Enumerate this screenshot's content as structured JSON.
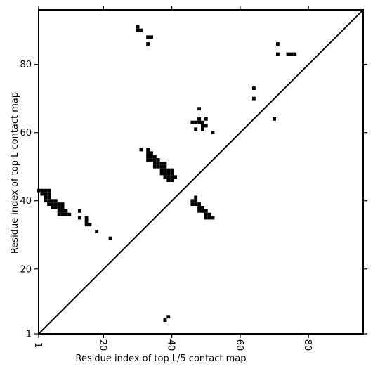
{
  "chart_data": {
    "type": "heatmap",
    "title": "",
    "xlabel": "Residue index of top L/5 contact map",
    "ylabel": "Residue index of top L contact map",
    "xlim": [
      1,
      96
    ],
    "ylim": [
      1,
      96
    ],
    "x_ticks": [
      "1",
      "20",
      "40",
      "60",
      "80"
    ],
    "y_ticks": [
      "1",
      "20",
      "40",
      "60",
      "80"
    ],
    "x_tick_values": [
      1,
      20,
      40,
      60,
      80
    ],
    "y_tick_values": [
      1,
      20,
      40,
      60,
      80
    ],
    "grid": false,
    "diagonal": true,
    "contact_color": "#000000",
    "contacts": [
      [
        1,
        43
      ],
      [
        2,
        43
      ],
      [
        3,
        43
      ],
      [
        4,
        43
      ],
      [
        2,
        42
      ],
      [
        3,
        42
      ],
      [
        4,
        42
      ],
      [
        3,
        41
      ],
      [
        4,
        41
      ],
      [
        3,
        40
      ],
      [
        4,
        40
      ],
      [
        5,
        40
      ],
      [
        6,
        40
      ],
      [
        4,
        39
      ],
      [
        5,
        39
      ],
      [
        6,
        39
      ],
      [
        7,
        39
      ],
      [
        8,
        39
      ],
      [
        5,
        38
      ],
      [
        6,
        38
      ],
      [
        7,
        38
      ],
      [
        8,
        38
      ],
      [
        7,
        37
      ],
      [
        8,
        37
      ],
      [
        9,
        37
      ],
      [
        7,
        36
      ],
      [
        8,
        36
      ],
      [
        9,
        36
      ],
      [
        10,
        36
      ],
      [
        13,
        37
      ],
      [
        13,
        35
      ],
      [
        15,
        35
      ],
      [
        15,
        34
      ],
      [
        15,
        33
      ],
      [
        16,
        33
      ],
      [
        18,
        31
      ],
      [
        22,
        29
      ],
      [
        30,
        91
      ],
      [
        30,
        90
      ],
      [
        31,
        90
      ],
      [
        33,
        88
      ],
      [
        34,
        88
      ],
      [
        33,
        86
      ],
      [
        31,
        55
      ],
      [
        33,
        55
      ],
      [
        33,
        54
      ],
      [
        34,
        54
      ],
      [
        33,
        53
      ],
      [
        34,
        53
      ],
      [
        35,
        53
      ],
      [
        33,
        52
      ],
      [
        34,
        52
      ],
      [
        35,
        52
      ],
      [
        36,
        52
      ],
      [
        35,
        51
      ],
      [
        36,
        51
      ],
      [
        37,
        51
      ],
      [
        38,
        51
      ],
      [
        35,
        50
      ],
      [
        36,
        50
      ],
      [
        37,
        50
      ],
      [
        38,
        50
      ],
      [
        37,
        49
      ],
      [
        38,
        49
      ],
      [
        39,
        49
      ],
      [
        40,
        49
      ],
      [
        37,
        48
      ],
      [
        38,
        48
      ],
      [
        39,
        48
      ],
      [
        40,
        48
      ],
      [
        38,
        47
      ],
      [
        39,
        47
      ],
      [
        40,
        47
      ],
      [
        41,
        47
      ],
      [
        39,
        46
      ],
      [
        40,
        46
      ],
      [
        38,
        5
      ],
      [
        39,
        6
      ],
      [
        48,
        67
      ],
      [
        48,
        64
      ],
      [
        50,
        64
      ],
      [
        46,
        63
      ],
      [
        47,
        63
      ],
      [
        48,
        63
      ],
      [
        49,
        63
      ],
      [
        49,
        62
      ],
      [
        50,
        62
      ],
      [
        47,
        61
      ],
      [
        49,
        61
      ],
      [
        52,
        60
      ],
      [
        47,
        41
      ],
      [
        46,
        40
      ],
      [
        47,
        40
      ],
      [
        46,
        39
      ],
      [
        47,
        39
      ],
      [
        48,
        39
      ],
      [
        48,
        38
      ],
      [
        49,
        38
      ],
      [
        48,
        37
      ],
      [
        49,
        37
      ],
      [
        50,
        37
      ],
      [
        50,
        36
      ],
      [
        51,
        36
      ],
      [
        50,
        35
      ],
      [
        51,
        35
      ],
      [
        52,
        35
      ],
      [
        64,
        73
      ],
      [
        64,
        70
      ],
      [
        70,
        64
      ],
      [
        71,
        86
      ],
      [
        71,
        83
      ],
      [
        74,
        83
      ],
      [
        75,
        83
      ],
      [
        76,
        83
      ]
    ]
  }
}
